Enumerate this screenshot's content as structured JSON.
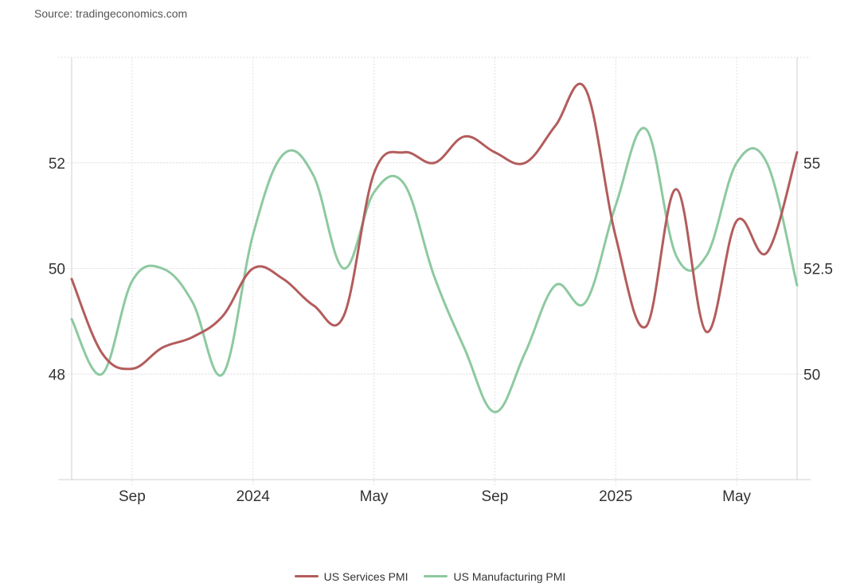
{
  "source": "Source: tradingeconomics.com",
  "chart_data": {
    "type": "line",
    "x": [
      "2023-07",
      "2023-08",
      "2023-09",
      "2023-10",
      "2023-11",
      "2023-12",
      "2024-01",
      "2024-02",
      "2024-03",
      "2024-04",
      "2024-05",
      "2024-06",
      "2024-07",
      "2024-08",
      "2024-09",
      "2024-10",
      "2024-11",
      "2024-12",
      "2025-01",
      "2025-02",
      "2025-03",
      "2025-04",
      "2025-05",
      "2025-06",
      "2025-07"
    ],
    "x_tick_labels": [
      "Sep",
      "2024",
      "May",
      "Sep",
      "2025",
      "May"
    ],
    "x_tick_positions": [
      "2023-09",
      "2024-01",
      "2024-05",
      "2024-09",
      "2025-01",
      "2025-05"
    ],
    "left_axis": {
      "ticks": [
        48,
        50,
        52
      ],
      "range": [
        46,
        54
      ]
    },
    "right_axis": {
      "ticks": [
        50,
        52.5,
        55
      ],
      "range": [
        47.5,
        57.5
      ]
    },
    "grid": true,
    "legend_position": "bottom-center",
    "series": [
      {
        "name": "US Services PMI",
        "axis": "left",
        "color": "#b35c5c",
        "values": [
          49.8,
          48.4,
          48.1,
          48.5,
          48.7,
          49.1,
          50.0,
          49.8,
          49.3,
          49.1,
          51.8,
          52.2,
          52.0,
          52.5,
          52.2,
          52.0,
          52.7,
          53.4,
          50.6,
          48.9,
          51.5,
          48.8,
          50.9,
          50.3,
          52.2
        ]
      },
      {
        "name": "US Manufacturing PMI",
        "axis": "right",
        "color": "#8dc9a0",
        "values": [
          51.3,
          50.0,
          52.2,
          52.5,
          51.7,
          50.0,
          53.3,
          55.2,
          54.7,
          52.5,
          54.3,
          54.5,
          52.3,
          50.6,
          49.1,
          50.5,
          52.1,
          51.7,
          54.0,
          55.8,
          52.8,
          52.8,
          55.0,
          55.0,
          52.1
        ]
      }
    ]
  }
}
